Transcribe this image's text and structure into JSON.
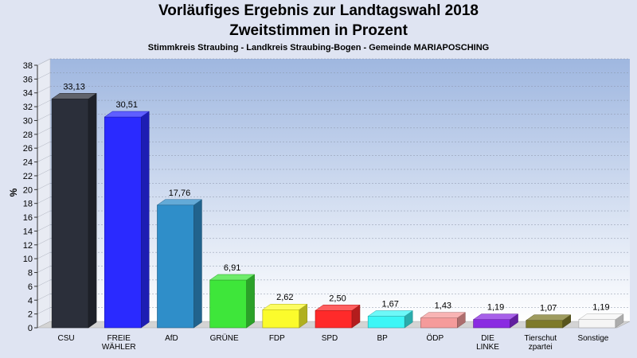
{
  "chart_data": {
    "type": "bar",
    "title": "Vorläufiges Ergebnis zur Landtagswahl 2018",
    "subtitle": "Zweitstimmen in Prozent",
    "subsubtitle": "Stimmkreis Straubing - Landkreis Straubing-Bogen - Gemeinde MARIAPOSCHING",
    "ylabel": "%",
    "xlabel": "",
    "ylim": [
      0,
      38
    ],
    "ytick_step": 2,
    "grid": true,
    "categories": [
      [
        "CSU"
      ],
      [
        "FREIE",
        "WÄHLER"
      ],
      [
        "AfD"
      ],
      [
        "GRÜNE"
      ],
      [
        "FDP"
      ],
      [
        "SPD"
      ],
      [
        "BP"
      ],
      [
        "ÖDP"
      ],
      [
        "DIE",
        "LINKE"
      ],
      [
        "Tierschut",
        "zpartei"
      ],
      [
        "Sonstige"
      ]
    ],
    "values": [
      33.13,
      30.51,
      17.76,
      6.91,
      2.62,
      2.5,
      1.67,
      1.43,
      1.19,
      1.07,
      1.19
    ],
    "value_labels": [
      "33,13",
      "30,51",
      "17,76",
      "6,91",
      "2,62",
      "2,50",
      "1,67",
      "1,43",
      "1,19",
      "1,07",
      "1,19"
    ],
    "colors": [
      "#2b2f3a",
      "#2a2aff",
      "#2f8ec9",
      "#3ee63a",
      "#fbfb2c",
      "#ff2a2a",
      "#3cf6f6",
      "#f59b9b",
      "#8a2be2",
      "#7e7a2a",
      "#f5f5f5"
    ]
  }
}
